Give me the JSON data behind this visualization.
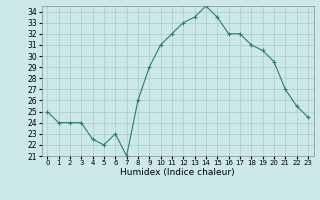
{
  "x": [
    0,
    1,
    2,
    3,
    4,
    5,
    6,
    7,
    8,
    9,
    10,
    11,
    12,
    13,
    14,
    15,
    16,
    17,
    18,
    19,
    20,
    21,
    22,
    23
  ],
  "y": [
    25.0,
    24.0,
    24.0,
    24.0,
    22.5,
    22.0,
    23.0,
    21.0,
    26.0,
    29.0,
    31.0,
    32.0,
    33.0,
    33.5,
    34.5,
    33.5,
    32.0,
    32.0,
    31.0,
    30.5,
    29.5,
    27.0,
    25.5,
    24.5
  ],
  "line_color": "#2e7d6e",
  "marker": "+",
  "bg_color": "#cce8e8",
  "grid_color": "#aacccc",
  "xlabel": "Humidex (Indice chaleur)",
  "ylim": [
    21,
    34.5
  ],
  "xlim": [
    -0.5,
    23.5
  ],
  "yticks": [
    21,
    22,
    23,
    24,
    25,
    26,
    27,
    28,
    29,
    30,
    31,
    32,
    33,
    34
  ],
  "xtick_labels": [
    "0",
    "1",
    "2",
    "3",
    "4",
    "5",
    "6",
    "7",
    "8",
    "9",
    "10",
    "11",
    "12",
    "13",
    "14",
    "15",
    "16",
    "17",
    "18",
    "19",
    "20",
    "21",
    "22",
    "23"
  ]
}
